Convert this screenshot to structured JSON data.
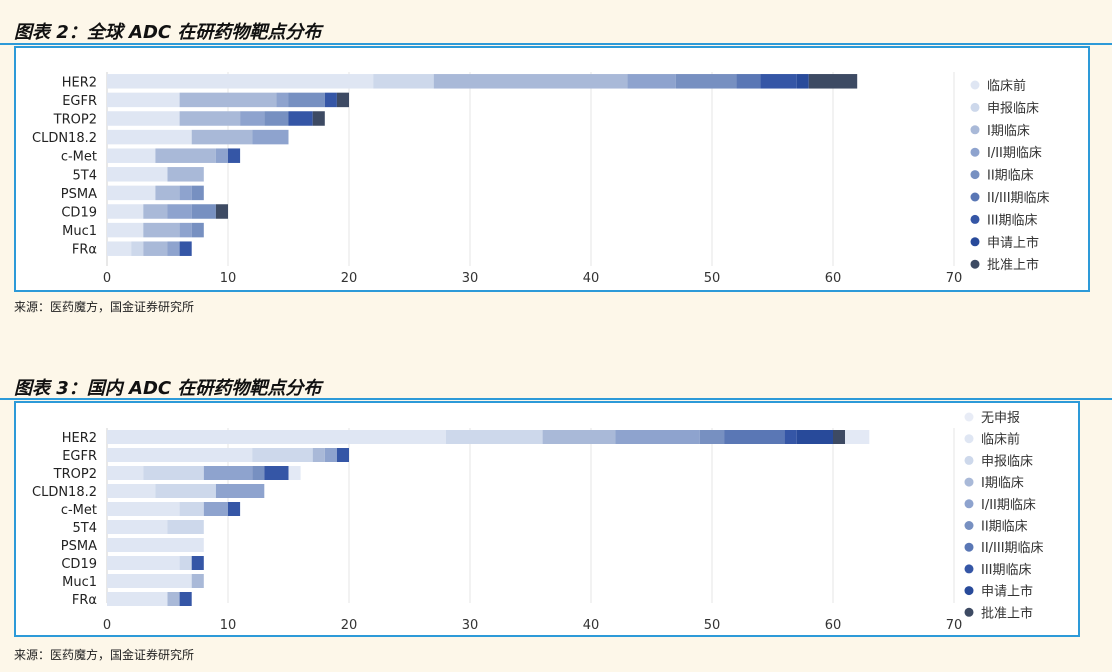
{
  "figure1": {
    "title": "图表 2：全球 ADC 在研药物靶点分布",
    "source": "来源：医药魔方，国金证券研究所"
  },
  "figure2": {
    "title": "图表 3：国内 ADC 在研药物靶点分布",
    "source": "来源：医药魔方，国金证券研究所"
  },
  "chart_data": [
    {
      "type": "bar",
      "orientation": "horizontal",
      "stacked": true,
      "categories": [
        "HER2",
        "EGFR",
        "TROP2",
        "CLDN18.2",
        "c-Met",
        "5T4",
        "PSMA",
        "CD19",
        "Muc1",
        "FRα"
      ],
      "xlim": [
        0,
        70
      ],
      "xticks": [
        0,
        10,
        20,
        30,
        40,
        50,
        60,
        70
      ],
      "grid": "vertical",
      "legend_position": "right",
      "series": [
        {
          "name": "临床前",
          "color": "#dfe6f3",
          "values": [
            22,
            6,
            6,
            7,
            4,
            5,
            4,
            3,
            3,
            2
          ]
        },
        {
          "name": "申报临床",
          "color": "#cdd8eb",
          "values": [
            5,
            0,
            0,
            0,
            0,
            0,
            0,
            0,
            0,
            1
          ]
        },
        {
          "name": "I期临床",
          "color": "#a9b9d8",
          "values": [
            16,
            8,
            5,
            5,
            5,
            3,
            2,
            2,
            3,
            2
          ]
        },
        {
          "name": "I/II期临床",
          "color": "#8ea3ce",
          "values": [
            4,
            1,
            2,
            3,
            1,
            0,
            1,
            2,
            1,
            1
          ]
        },
        {
          "name": "II期临床",
          "color": "#7790c1",
          "values": [
            5,
            3,
            2,
            0,
            0,
            0,
            1,
            2,
            1,
            0
          ]
        },
        {
          "name": "II/III期临床",
          "color": "#5a77b5",
          "values": [
            2,
            0,
            0,
            0,
            0,
            0,
            0,
            0,
            0,
            0
          ]
        },
        {
          "name": "III期临床",
          "color": "#3556a6",
          "values": [
            3,
            1,
            2,
            0,
            1,
            0,
            0,
            0,
            0,
            1
          ]
        },
        {
          "name": "申请上市",
          "color": "#284a9a",
          "values": [
            1,
            0,
            0,
            0,
            0,
            0,
            0,
            0,
            0,
            0
          ]
        },
        {
          "name": "批准上市",
          "color": "#3d4a63",
          "values": [
            4,
            1,
            1,
            0,
            0,
            0,
            0,
            1,
            0,
            0
          ]
        }
      ]
    },
    {
      "type": "bar",
      "orientation": "horizontal",
      "stacked": true,
      "categories": [
        "HER2",
        "EGFR",
        "TROP2",
        "CLDN18.2",
        "c-Met",
        "5T4",
        "PSMA",
        "CD19",
        "Muc1",
        "FRα"
      ],
      "xlim": [
        0,
        70
      ],
      "xticks": [
        0,
        10,
        20,
        30,
        40,
        50,
        60,
        70
      ],
      "grid": "vertical",
      "legend_position": "right",
      "series": [
        {
          "name": "无申报",
          "color": "#e8ecf6",
          "values": [
            0,
            0,
            0,
            0,
            0,
            0,
            0,
            0,
            0,
            0
          ]
        },
        {
          "name": "临床前",
          "color": "#dfe6f3",
          "values": [
            28,
            12,
            3,
            4,
            6,
            5,
            8,
            6,
            7,
            5
          ]
        },
        {
          "name": "申报临床",
          "color": "#cdd8eb",
          "values": [
            8,
            5,
            5,
            5,
            2,
            3,
            0,
            1,
            0,
            0
          ]
        },
        {
          "name": "I期临床",
          "color": "#a9b9d8",
          "values": [
            6,
            1,
            0,
            0,
            0,
            0,
            0,
            0,
            1,
            1
          ]
        },
        {
          "name": "I/II期临床",
          "color": "#8ea3ce",
          "values": [
            7,
            1,
            4,
            4,
            2,
            0,
            0,
            0,
            0,
            0
          ]
        },
        {
          "name": "II期临床",
          "color": "#7790c1",
          "values": [
            2,
            0,
            1,
            0,
            0,
            0,
            0,
            0,
            0,
            0
          ]
        },
        {
          "name": "II/III期临床",
          "color": "#5a77b5",
          "values": [
            5,
            0,
            0,
            0,
            0,
            0,
            0,
            0,
            0,
            0
          ]
        },
        {
          "name": "III期临床",
          "color": "#3556a6",
          "values": [
            1,
            1,
            2,
            0,
            1,
            0,
            0,
            1,
            0,
            1
          ]
        },
        {
          "name": "申请上市",
          "color": "#284a9a",
          "values": [
            3,
            0,
            0,
            0,
            0,
            0,
            0,
            0,
            0,
            0
          ]
        },
        {
          "name": "批准上市",
          "color": "#3d4a63",
          "values": [
            1,
            0,
            0,
            0,
            0,
            0,
            0,
            0,
            0,
            0
          ]
        },
        {
          "name": "",
          "color": "#e3e9f5",
          "values": [
            2,
            0,
            1,
            0,
            0,
            0,
            0,
            0,
            0,
            0
          ]
        }
      ]
    }
  ]
}
